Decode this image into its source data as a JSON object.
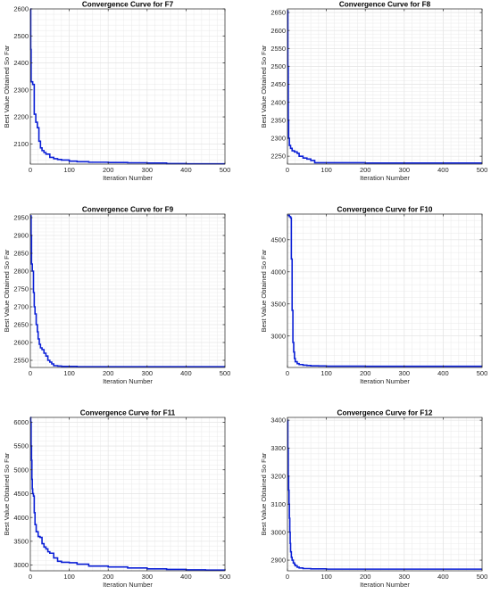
{
  "chart_data": [
    {
      "type": "line",
      "title": "Convergence Curve for F7",
      "xlabel": "Iteration Number",
      "ylabel": "Best Value Obtained So Far",
      "xlim": [
        0,
        500
      ],
      "ylim": [
        2025,
        2600
      ],
      "xticks": [
        0,
        100,
        200,
        300,
        400,
        500
      ],
      "yticks": [
        2100,
        2200,
        2300,
        2400,
        2500,
        2600
      ],
      "grid": true,
      "series": [
        {
          "color": "#0a1fd6",
          "x": [
            0,
            1,
            2,
            4,
            6,
            10,
            14,
            18,
            22,
            26,
            30,
            35,
            40,
            50,
            60,
            70,
            80,
            100,
            120,
            150,
            200,
            250,
            300,
            350,
            400,
            450,
            500
          ],
          "y": [
            2600,
            2450,
            2330,
            2330,
            2320,
            2210,
            2180,
            2160,
            2110,
            2085,
            2075,
            2068,
            2062,
            2050,
            2045,
            2042,
            2040,
            2036,
            2034,
            2032,
            2031,
            2030,
            2029,
            2027,
            2026,
            2026,
            2026
          ]
        }
      ]
    },
    {
      "type": "line",
      "title": "Convergence Curve for F8",
      "xlabel": "Iteration Number",
      "ylabel": "Best Value Obtained So Far",
      "xlim": [
        0,
        500
      ],
      "ylim": [
        2228,
        2660
      ],
      "xticks": [
        0,
        100,
        200,
        300,
        400,
        500
      ],
      "yticks": [
        2250,
        2300,
        2350,
        2400,
        2450,
        2500,
        2550,
        2600,
        2650
      ],
      "grid": true,
      "series": [
        {
          "color": "#0a1fd6",
          "x": [
            0,
            1,
            2,
            3,
            5,
            8,
            12,
            18,
            25,
            30,
            40,
            50,
            60,
            70,
            100,
            200,
            300,
            400,
            500
          ],
          "y": [
            2655,
            2500,
            2350,
            2300,
            2280,
            2272,
            2265,
            2262,
            2258,
            2250,
            2245,
            2242,
            2238,
            2232,
            2232,
            2231,
            2231,
            2231,
            2231
          ]
        }
      ]
    },
    {
      "type": "line",
      "title": "Convergence Curve for F9",
      "xlabel": "Iteration Number",
      "ylabel": "Best Value Obtained So Far",
      "xlim": [
        0,
        500
      ],
      "ylim": [
        2530,
        2960
      ],
      "xticks": [
        0,
        100,
        200,
        300,
        400,
        500
      ],
      "yticks": [
        2550,
        2600,
        2650,
        2700,
        2750,
        2800,
        2850,
        2900,
        2950
      ],
      "grid": true,
      "series": [
        {
          "color": "#0a1fd6",
          "x": [
            0,
            1,
            2,
            3,
            5,
            8,
            10,
            12,
            15,
            18,
            20,
            23,
            26,
            30,
            35,
            40,
            45,
            50,
            55,
            60,
            70,
            80,
            100,
            120,
            150,
            200,
            300,
            400,
            500
          ],
          "y": [
            2955,
            2955,
            2900,
            2820,
            2800,
            2740,
            2700,
            2680,
            2650,
            2630,
            2610,
            2595,
            2585,
            2580,
            2570,
            2562,
            2550,
            2545,
            2540,
            2535,
            2534,
            2533,
            2533,
            2532,
            2532,
            2532,
            2532,
            2532,
            2532
          ]
        }
      ]
    },
    {
      "type": "line",
      "title": "Convergence Curve for F10",
      "xlabel": "Iteration Number",
      "ylabel": "Best Value Obtained So Far",
      "xlim": [
        0,
        500
      ],
      "ylim": [
        2510,
        4900
      ],
      "xticks": [
        0,
        100,
        200,
        300,
        400,
        500
      ],
      "yticks": [
        3000,
        3500,
        4000,
        4500
      ],
      "grid": true,
      "series": [
        {
          "color": "#0a1fd6",
          "x": [
            0,
            2,
            5,
            8,
            10,
            12,
            14,
            16,
            18,
            20,
            25,
            30,
            40,
            50,
            60,
            80,
            100,
            200,
            300,
            400,
            500
          ],
          "y": [
            4880,
            4880,
            4860,
            4840,
            4200,
            3400,
            2900,
            2750,
            2650,
            2600,
            2570,
            2555,
            2545,
            2540,
            2535,
            2533,
            2530,
            2528,
            2528,
            2528,
            2528
          ]
        }
      ]
    },
    {
      "type": "line",
      "title": "Convergence Curve for F11",
      "xlabel": "Iteration Number",
      "ylabel": "Best Value Obtained So Far",
      "xlim": [
        0,
        500
      ],
      "ylim": [
        2880,
        6100
      ],
      "xticks": [
        0,
        100,
        200,
        300,
        400,
        500
      ],
      "yticks": [
        3000,
        3500,
        4000,
        4500,
        5000,
        5500,
        6000
      ],
      "grid": true,
      "series": [
        {
          "color": "#0a1fd6",
          "x": [
            0,
            1,
            2,
            3,
            4,
            5,
            6,
            8,
            10,
            12,
            15,
            20,
            25,
            30,
            35,
            40,
            45,
            50,
            60,
            70,
            80,
            100,
            120,
            150,
            200,
            250,
            300,
            350,
            400,
            450,
            500
          ],
          "y": [
            6100,
            6000,
            5500,
            5200,
            4800,
            4600,
            4500,
            4450,
            4100,
            3850,
            3700,
            3600,
            3580,
            3450,
            3380,
            3340,
            3280,
            3250,
            3150,
            3080,
            3060,
            3050,
            3020,
            2980,
            2960,
            2940,
            2920,
            2910,
            2900,
            2895,
            2890
          ]
        }
      ]
    },
    {
      "type": "line",
      "title": "Convergence Curve for F12",
      "xlabel": "Iteration Number",
      "ylabel": "Best Value Obtained So Far",
      "xlim": [
        0,
        500
      ],
      "ylim": [
        2862,
        3410
      ],
      "xticks": [
        0,
        100,
        200,
        300,
        400,
        500
      ],
      "yticks": [
        2900,
        3000,
        3100,
        3200,
        3300,
        3400
      ],
      "grid": true,
      "series": [
        {
          "color": "#0a1fd6",
          "x": [
            0,
            1,
            2,
            3,
            4,
            5,
            6,
            7,
            8,
            10,
            12,
            15,
            18,
            20,
            25,
            30,
            40,
            60,
            100,
            200,
            300,
            400,
            500
          ],
          "y": [
            3400,
            3300,
            3200,
            3150,
            3100,
            3050,
            3000,
            2960,
            2930,
            2910,
            2900,
            2890,
            2885,
            2880,
            2875,
            2872,
            2870,
            2869,
            2868,
            2868,
            2868,
            2868,
            2868
          ]
        }
      ]
    }
  ]
}
